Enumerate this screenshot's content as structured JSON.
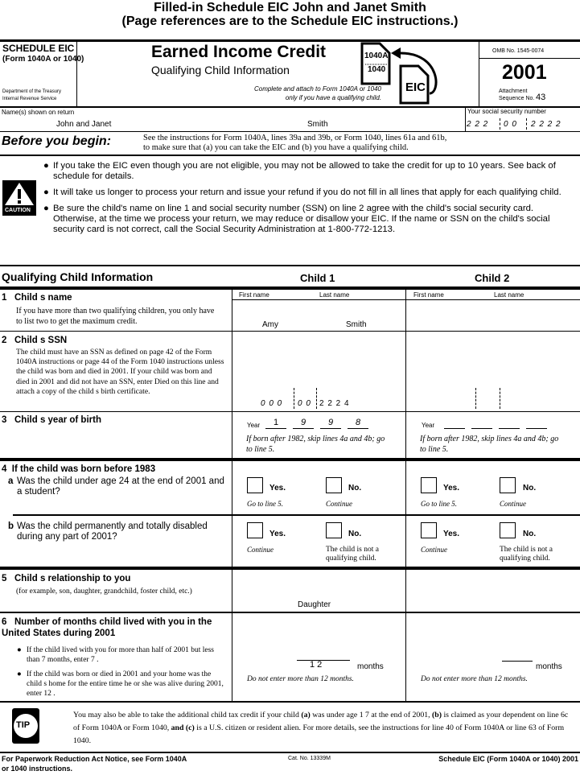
{
  "banner": {
    "line1": "Filled-in Schedule EIC    John and Janet Smith",
    "line2": "(Page references are to the Schedule EIC instructions.)"
  },
  "header": {
    "schedule": "SCHEDULE EIC",
    "form": "(Form 1040A or 1040)",
    "dept1": "Department of the Treasury",
    "dept2": "Internal Revenue Service",
    "title": "Earned Income Credit",
    "subtitle": "Qualifying Child Information",
    "attach1": "Complete and attach to Form 1040A or 1040",
    "attach2": "only if you have a qualifying child.",
    "logo_top": "1040A",
    "logo_bottom": "1040",
    "logo_eic": "EIC",
    "omb": "OMB No. 1545-0074",
    "year": "2001",
    "attachment": "Attachment",
    "sequence": "Sequence No.",
    "sequence_no": "43"
  },
  "names": {
    "label": "Name(s) shown on return",
    "first": "John and Janet",
    "last": "Smith",
    "ssn_label": "Your social security number",
    "ssn": [
      "2 2 2",
      "0 0",
      "2 2 2 2"
    ]
  },
  "before": {
    "heading": "Before you begin:",
    "line1": "See the instructions for Form 1040A, lines 39a and 39b, or Form 1040, lines 61a and 61b,",
    "line2": "to make sure that (a) you can take the EIC and (b) you have a qualifying child."
  },
  "caution": {
    "label": "CAUTION",
    "bullets": [
      "If you take the EIC even though you are not eligible, you may not be allowed to take the credit for up to 10 years. See back of schedule for details.",
      "It will take us longer to process your return and issue your refund if you do not fill in all lines that apply for each qualifying child.",
      "Be sure the child's name on line 1 and social security number (SSN) on line 2 agree with the child's social security card. Otherwise, at the time we process your return, we may reduce or disallow your EIC. If the name or SSN on the child's social security card is not correct, call the Social Security Administration at 1-800-772-1213."
    ]
  },
  "section": {
    "title": "Qualifying Child Information",
    "child1": "Child 1",
    "child2": "Child 2",
    "first_name": "First name",
    "last_name": "Last name"
  },
  "line1": {
    "num": "1",
    "title": "Child   s name",
    "text": "If you have more than two qualifying children, you only have to list two to get the maximum credit.",
    "child1_first": "Amy",
    "child1_last": "Smith"
  },
  "line2": {
    "num": "2",
    "title": "Child   s SSN",
    "text": "The child must have an SSN as defined on page 42 of the Form 1040A instructions or page 44 of the Form 1040 instructions unless the child was born and died in 2001. If your child was born and died in 2001 and did not have an SSN, enter   Died   on this line and attach a copy of the child   s birth certificate.",
    "child1_ssn": [
      "0 0 0",
      "0 0",
      "2 2 2 4"
    ]
  },
  "line3": {
    "num": "3",
    "title": "Child   s year of birth",
    "year_label": "Year",
    "child1_year": [
      "1",
      "9",
      "9",
      "8"
    ],
    "note": "If born after 1982, skip lines 4a and 4b; go to line 5."
  },
  "line4": {
    "num": "4",
    "title": "If the child was born before 1983",
    "a_letter": "a",
    "a_text": "Was the child under age 24 at the end of 2001 and a student?",
    "b_letter": "b",
    "b_text": "Was the child permanently and totally disabled during any part of 2001?",
    "yes": "Yes.",
    "no": "No.",
    "a_yes_note": "Go to line 5.",
    "a_no_note": "Continue",
    "b_yes_note": "Continue",
    "b_no_note": "The child is not a qualifying child."
  },
  "line5": {
    "num": "5",
    "title": "Child   s relationship to you",
    "text": "(for example, son, daughter, grandchild, foster child, etc.)",
    "child1": "Daughter"
  },
  "line6": {
    "num": "6",
    "title": "Number of months child lived with you in the United States during 2001",
    "bullet1": "If the child lived with you for more than half of 2001 but less than 7 months, enter   7  .",
    "bullet2": "If the child was born or died in 2001 and your home was the child   s home for the entire time he or she was alive during 2001, enter   12  .",
    "child1_months": "1 2",
    "months": "months",
    "note": "Do not enter more than 12 months."
  },
  "tip": {
    "label": "TIP",
    "text_html": "You may also be able to take the additional child tax credit if your child <b>(a)</b> was under age 1 7 at the end of 2001, <b>(b)</b> is claimed as your dependent on line 6c of Form 1040A or Form 1040, <b>and (c)</b> is a U.S. citizen or resident alien. For more details, see the instructions for line 40 of Form 1040A or line 63 of Form 1040."
  },
  "footer": {
    "left1": "For Paperwork Reduction Act Notice, see Form 1040A",
    "left2": "or 1040 instructions.",
    "cat": "Cat. No. 13339M",
    "right": "Schedule EIC (Form 1040A or 1040) 2001"
  }
}
